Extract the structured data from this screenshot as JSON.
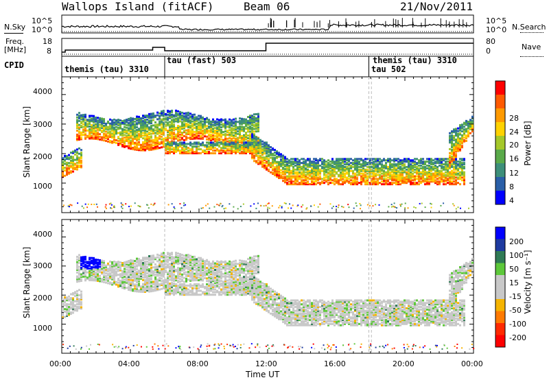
{
  "header": {
    "site": "Wallops Island (fitACF)",
    "beam": "Beam 06",
    "date": "21/Nov/2011"
  },
  "top_panel": {
    "left_label": "N.Sky",
    "left_ticks": [
      "10^5",
      "10^0"
    ],
    "right_label": "N.Search",
    "right_ticks": [
      "10^5",
      "10^0"
    ]
  },
  "freq_panel": {
    "left_label_1": "Freq.",
    "left_label_2": "[MHz]",
    "left_ticks": [
      "18",
      "8"
    ],
    "right_label": "Nave",
    "right_ticks": [
      "80",
      "0"
    ]
  },
  "cpid": {
    "label": "CPID",
    "segments": [
      "themis (tau) 3310",
      "tau (fast) 503",
      "themis (tau) 3310",
      "tau 502"
    ]
  },
  "colors": {
    "power_scale": [
      "#0000ff",
      "#2a5fa8",
      "#3d8f7a",
      "#5aaa4a",
      "#a5c82a",
      "#ffd200",
      "#ff9a00",
      "#ff5a00",
      "#ff0000"
    ],
    "velocity_scale": [
      "#0000ff",
      "#1e3aa0",
      "#2f7a55",
      "#5dc83a",
      "#c8c8c8",
      "#c8c8c8",
      "#f5b400",
      "#ff7a00",
      "#ff2a00",
      "#ff0000"
    ],
    "ground_scatter": "#c8c8c8"
  },
  "chart_data": [
    {
      "type": "heatmap",
      "name": "power",
      "ylabel": "Slant Range [km]",
      "yticks": [
        "1000",
        "2000",
        "3000",
        "4000"
      ],
      "ylim": [
        0,
        4600
      ],
      "xlim": [
        0,
        24
      ],
      "colorbar_label": "Power [dB]",
      "colorbar_ticks": [
        "4",
        "8",
        "12",
        "16",
        "20",
        "24",
        "28"
      ],
      "colorbar_range": [
        0,
        32
      ]
    },
    {
      "type": "heatmap",
      "name": "velocity",
      "ylabel": "Slant Range [km]",
      "yticks": [
        "1000",
        "2000",
        "3000",
        "4000"
      ],
      "ylim": [
        0,
        4600
      ],
      "xlim": [
        0,
        24
      ],
      "colorbar_label": "Velocity [m s⁻¹]",
      "colorbar_ticks": [
        "200",
        "100",
        "50",
        "15",
        "-15",
        "-50",
        "-100",
        "-200"
      ],
      "ground_scatter_color": "#c8c8c8"
    }
  ],
  "xaxis": {
    "ticks": [
      "00:00",
      "04:00",
      "08:00",
      "12:00",
      "16:00",
      "20:00",
      "00:00"
    ],
    "label": "Time UT"
  }
}
